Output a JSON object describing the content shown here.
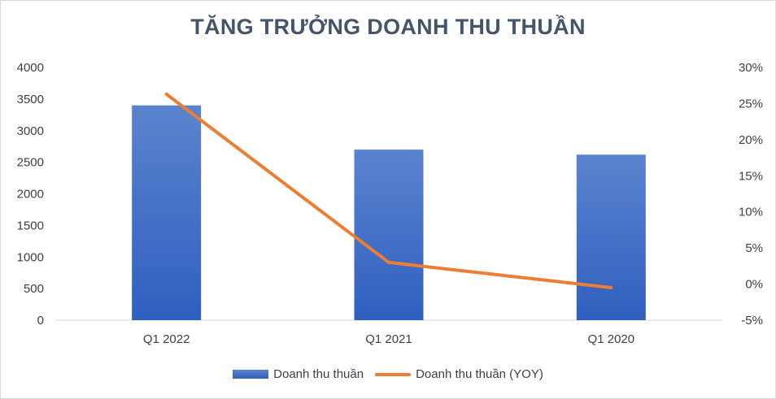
{
  "chart_data": {
    "type": "bar",
    "title": "TĂNG TRƯỞNG DOANH THU THUẦN",
    "categories": [
      "Q1 2022",
      "Q1 2021",
      "Q1 2020"
    ],
    "series": [
      {
        "name": "Doanh thu thuần",
        "type": "bar",
        "axis": "left",
        "values": [
          3400,
          2700,
          2620
        ]
      },
      {
        "name": "Doanh thu thuần (YOY)",
        "type": "line",
        "axis": "right",
        "values": [
          26.3,
          3.0,
          -0.5
        ]
      }
    ],
    "y_left": {
      "ylim": [
        0,
        4000
      ],
      "ticks": [
        "0",
        "500",
        "1000",
        "1500",
        "2000",
        "2500",
        "3000",
        "3500",
        "4000"
      ]
    },
    "y_right": {
      "ylim": [
        -5,
        30
      ],
      "ticks": [
        "-5%",
        "0%",
        "5%",
        "10%",
        "15%",
        "20%",
        "25%",
        "30%"
      ]
    },
    "grid": false,
    "legend_position": "bottom",
    "colors": {
      "bar_top": "#5b84cf",
      "bar_bottom": "#2f5fbf",
      "line": "#ed7d31",
      "title": "#44546a"
    }
  }
}
